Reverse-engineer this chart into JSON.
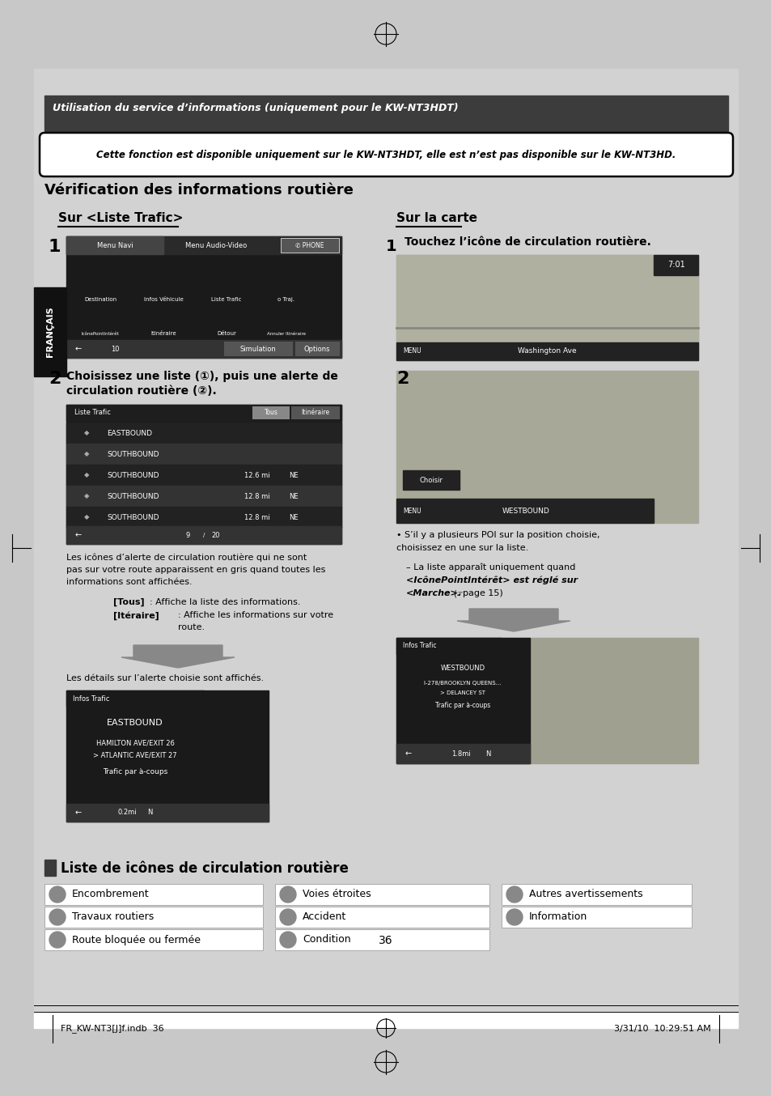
{
  "page_bg": "#c8c8c8",
  "inner_bg": "#d2d2d2",
  "white_bg": "#ffffff",
  "header_bg": "#3c3c3c",
  "header_text": "Utilisation du service d’informations (uniquement pour le KW-NT3HDT)",
  "notice_text": "Cette fonction est disponible uniquement sur le KW-NT3HDT, elle est n’est pas disponible sur le KW-NT3HD.",
  "section_title": "Vérification des informations routière",
  "left_subtitle": "Sur <Liste Trafic>",
  "right_subtitle": "Sur la carte",
  "step1_right_text": "Touchez l’icône de circulation routière.",
  "step2_left_line1": "Choisissez une liste (①), puis une alerte de",
  "step2_left_line2": "circulation routière (②).",
  "note1_line1": "Les icônes d’alerte de circulation routière qui ne sont",
  "note1_line2": "pas sur votre route apparaissent en gris quand toutes les",
  "note1_line3": "informations sont affichées.",
  "note2": "[Tous]: Affiche la liste des informations.",
  "note2_bold": "[Tous]",
  "note2_rest": ": Affiche la liste des informations.",
  "note3_bold": "[Itéraire]",
  "note3_rest": ": Affiche les informations sur votre",
  "note3_line2": "route.",
  "note4": "Les détails sur l’alerte choisie sont affichés.",
  "bullet1_line1": "• S’il y a plusieurs POI sur la position choisie,",
  "bullet1_line2": "choisissez en une sur la liste.",
  "dash1_line1": "– La liste apparaît uniquement quand",
  "dash1_line2": "<IcônePointIntérêt> est réglé sur",
  "dash1_line3": "<Marche>.",
  "dash1_page": "page 15)",
  "section2_title": "Liste de icônes de circulation routière",
  "table_col1": [
    "Encombrement",
    "Travaux routiers",
    "Route bloquée ou fermée"
  ],
  "table_col2": [
    "Voies étroites",
    "Accident",
    "Condition"
  ],
  "table_col3": [
    "Autres avertissements",
    "Information"
  ],
  "page_num": "36",
  "footer_left": "FR_KW-NT3[J]f.indb  36",
  "footer_right": "3/31/10  10:29:51 AM",
  "francais_label": "FRANÇAIS",
  "screen_dark": "#1a1a1a",
  "screen_menu_bg": "#2d2d2d",
  "screen_row1": "#222222",
  "screen_row2": "#383838",
  "map_color": "#a0a090",
  "arrow_color": "#808080"
}
